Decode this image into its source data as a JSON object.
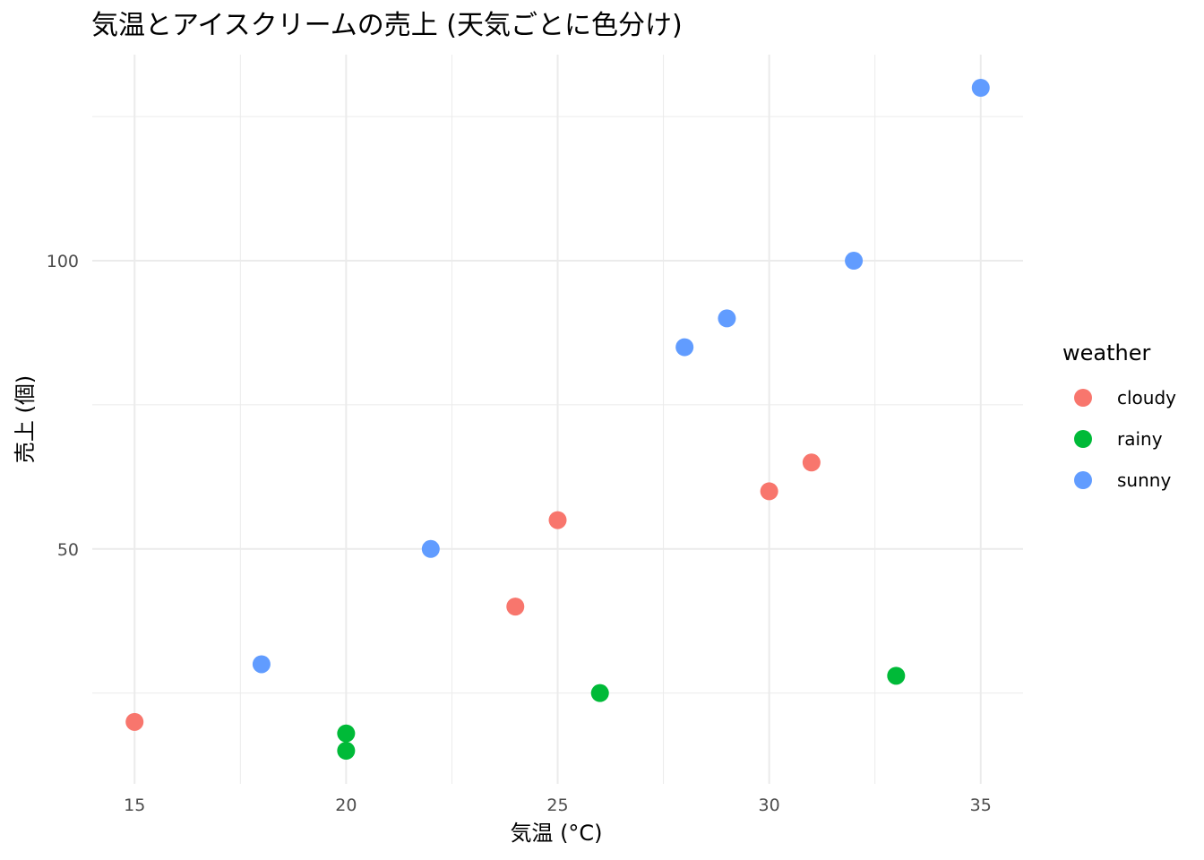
{
  "chart_data": {
    "type": "scatter",
    "title": "気温とアイスクリームの売上 (天気ごとに色分け)",
    "xlabel": "気温 (°C)",
    "ylabel": "売上 (個)",
    "xlim": [
      14,
      36
    ],
    "ylim": [
      9.25,
      135.75
    ],
    "x_ticks": [
      15,
      20,
      25,
      30,
      35
    ],
    "x_tick_labels": [
      "15",
      "20",
      "25",
      "30",
      "35"
    ],
    "y_ticks": [
      50,
      100
    ],
    "y_tick_labels": [
      "50",
      "100"
    ],
    "x_minor_grid": [
      17.5,
      22.5,
      27.5,
      32.5
    ],
    "y_minor_grid": [
      25,
      75,
      125
    ],
    "grid": true,
    "legend": {
      "title": "weather",
      "position": "right"
    },
    "series": [
      {
        "name": "cloudy",
        "color": "#F8766D",
        "points": [
          [
            15,
            20
          ],
          [
            24,
            40
          ],
          [
            25,
            55
          ],
          [
            30,
            60
          ],
          [
            31,
            65
          ]
        ]
      },
      {
        "name": "rainy",
        "color": "#00BA38",
        "points": [
          [
            20,
            15
          ],
          [
            20,
            18
          ],
          [
            26,
            25
          ],
          [
            33,
            28
          ]
        ]
      },
      {
        "name": "sunny",
        "color": "#619CFF",
        "points": [
          [
            18,
            30
          ],
          [
            22,
            50
          ],
          [
            28,
            85
          ],
          [
            29,
            90
          ],
          [
            32,
            100
          ],
          [
            35,
            130
          ]
        ]
      }
    ]
  }
}
